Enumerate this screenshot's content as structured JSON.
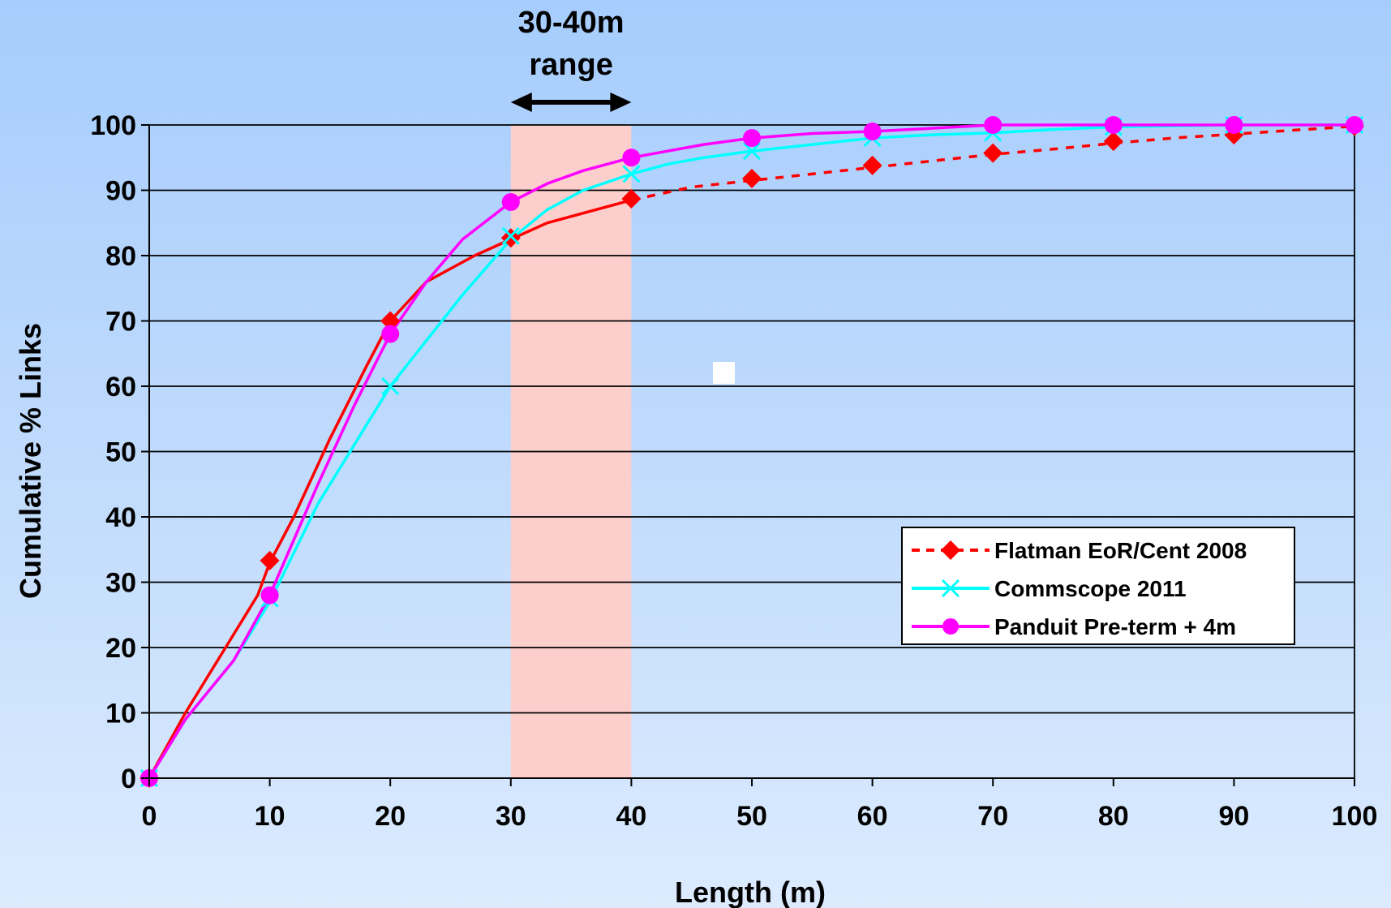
{
  "chart_data": {
    "type": "line",
    "xlabel": "Length (m)",
    "ylabel": "Cumulative % Links",
    "xlim": [
      0,
      100
    ],
    "ylim": [
      0,
      100
    ],
    "x_ticks": [
      0,
      10,
      20,
      30,
      40,
      50,
      60,
      70,
      80,
      90,
      100
    ],
    "y_ticks": [
      0,
      10,
      20,
      30,
      40,
      50,
      60,
      70,
      80,
      90,
      100
    ],
    "grid": "horizontal",
    "legend_position": "lower-right",
    "highlight_band": {
      "x_range": [
        30,
        40
      ],
      "color": "#fdcfcc",
      "label_line1": "30-40m",
      "label_line2": "range"
    },
    "series": [
      {
        "name": "Flatman EoR/Cent 2008",
        "color": "#ff0000",
        "marker": "diamond",
        "solid_until": 40,
        "line": [
          [
            0,
            0
          ],
          [
            3,
            10
          ],
          [
            6,
            19
          ],
          [
            9,
            28
          ],
          [
            10,
            33
          ],
          [
            12,
            40
          ],
          [
            15,
            52
          ],
          [
            18,
            63
          ],
          [
            20,
            70
          ],
          [
            23,
            76
          ],
          [
            27,
            80
          ],
          [
            30,
            82.5
          ],
          [
            33,
            85
          ],
          [
            36,
            86.5
          ],
          [
            40,
            88.5
          ],
          [
            45,
            90.5
          ],
          [
            50,
            91.5
          ],
          [
            55,
            92.5
          ],
          [
            60,
            93.5
          ],
          [
            65,
            94.5
          ],
          [
            70,
            95.5
          ],
          [
            75,
            96.3
          ],
          [
            80,
            97.2
          ],
          [
            85,
            98
          ],
          [
            90,
            98.6
          ],
          [
            95,
            99.2
          ],
          [
            100,
            99.8
          ]
        ],
        "markers": [
          [
            0,
            0
          ],
          [
            10,
            33.3
          ],
          [
            20,
            70
          ],
          [
            30,
            82.7
          ],
          [
            40,
            88.7
          ],
          [
            50,
            91.8
          ],
          [
            60,
            93.8
          ],
          [
            70,
            95.7
          ],
          [
            80,
            97.5
          ],
          [
            90,
            98.5
          ],
          [
            100,
            99.8
          ]
        ]
      },
      {
        "name": "Commscope 2011",
        "color": "#00ffff",
        "marker": "x",
        "line": [
          [
            0,
            0
          ],
          [
            3,
            9
          ],
          [
            7,
            18
          ],
          [
            10,
            27
          ],
          [
            14,
            42
          ],
          [
            17,
            51
          ],
          [
            20,
            60
          ],
          [
            23,
            67
          ],
          [
            26,
            74
          ],
          [
            30,
            82.5
          ],
          [
            33,
            87
          ],
          [
            36,
            90
          ],
          [
            40,
            92.5
          ],
          [
            43,
            94
          ],
          [
            46,
            95
          ],
          [
            50,
            96
          ],
          [
            55,
            97
          ],
          [
            60,
            98
          ],
          [
            65,
            98.5
          ],
          [
            70,
            98.8
          ],
          [
            75,
            99.3
          ],
          [
            80,
            99.7
          ],
          [
            90,
            100
          ],
          [
            100,
            100
          ]
        ],
        "markers": [
          [
            0,
            0
          ],
          [
            10,
            27.5
          ],
          [
            20,
            60
          ],
          [
            30,
            83
          ],
          [
            40,
            92.5
          ],
          [
            50,
            96
          ],
          [
            60,
            98
          ],
          [
            70,
            98.8
          ],
          [
            80,
            99.7
          ],
          [
            90,
            100
          ],
          [
            100,
            100
          ]
        ]
      },
      {
        "name": "Panduit Pre-term + 4m",
        "color": "#ff00ff",
        "marker": "circle",
        "line": [
          [
            0,
            0
          ],
          [
            3,
            9
          ],
          [
            7,
            18
          ],
          [
            10,
            28
          ],
          [
            14,
            45
          ],
          [
            17,
            57
          ],
          [
            20,
            68
          ],
          [
            23,
            76
          ],
          [
            26,
            82.5
          ],
          [
            30,
            88.2
          ],
          [
            33,
            91
          ],
          [
            36,
            93
          ],
          [
            40,
            95
          ],
          [
            43,
            96
          ],
          [
            46,
            97
          ],
          [
            50,
            98
          ],
          [
            55,
            98.7
          ],
          [
            60,
            99
          ],
          [
            65,
            99.5
          ],
          [
            70,
            100
          ],
          [
            80,
            100
          ],
          [
            90,
            100
          ],
          [
            100,
            100
          ]
        ],
        "markers": [
          [
            0,
            0
          ],
          [
            10,
            28
          ],
          [
            20,
            68
          ],
          [
            30,
            88.2
          ],
          [
            40,
            95
          ],
          [
            50,
            98
          ],
          [
            60,
            99
          ],
          [
            70,
            100
          ],
          [
            80,
            100
          ],
          [
            90,
            100
          ],
          [
            100,
            100
          ]
        ]
      }
    ]
  }
}
